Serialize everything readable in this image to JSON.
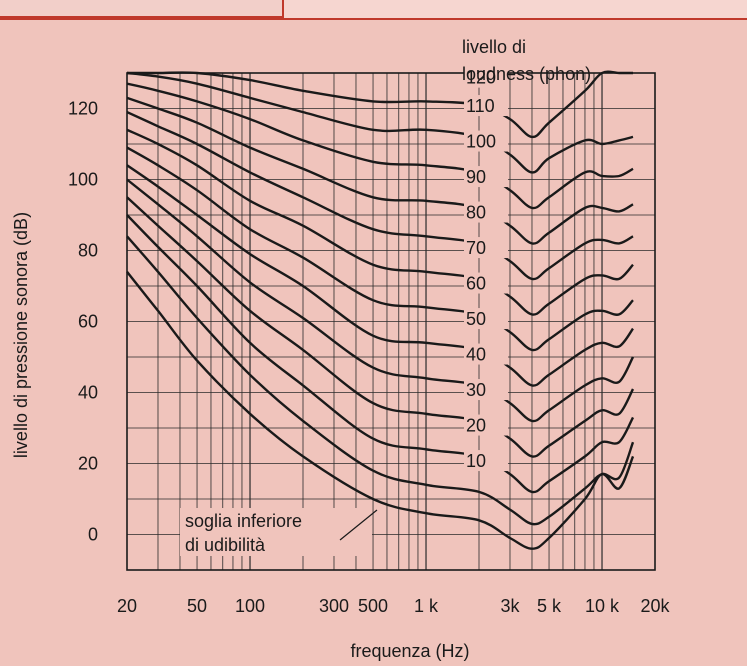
{
  "chart_data": {
    "type": "line",
    "x_scale": "log",
    "xlim": [
      20,
      20000
    ],
    "ylim": [
      -10,
      130
    ],
    "grid": true,
    "xlabel": "frequenza (Hz)",
    "ylabel": "livello di pressione sonora (dB)",
    "legend_title": [
      "livello di",
      "loudness (phon)"
    ],
    "x_ticks": [
      {
        "v": 20,
        "label": "20"
      },
      {
        "v": 50,
        "label": "50"
      },
      {
        "v": 100,
        "label": "100"
      },
      {
        "v": 300,
        "label": "300"
      },
      {
        "v": 500,
        "label": "500"
      },
      {
        "v": 1000,
        "label": "1 k"
      },
      {
        "v": 3000,
        "label": "3k"
      },
      {
        "v": 5000,
        "label": "5 k"
      },
      {
        "v": 10000,
        "label": "10 k"
      },
      {
        "v": 20000,
        "label": "20k"
      }
    ],
    "y_ticks": [
      {
        "v": 0,
        "label": "0"
      },
      {
        "v": 20,
        "label": "20"
      },
      {
        "v": 40,
        "label": "40"
      },
      {
        "v": 60,
        "label": "60"
      },
      {
        "v": 80,
        "label": "80"
      },
      {
        "v": 100,
        "label": "100"
      },
      {
        "v": 120,
        "label": "120"
      }
    ],
    "annotation": {
      "lines": [
        "soglia inferiore",
        "di udibilità"
      ]
    },
    "x": [
      20,
      30,
      50,
      100,
      200,
      500,
      1000,
      2000,
      3000,
      4000,
      5000,
      8000,
      10000,
      12500,
      15000
    ],
    "series": [
      {
        "name": "soglia",
        "label": "",
        "values": [
          74,
          63,
          49,
          34,
          22,
          10,
          6,
          4,
          -1,
          -4,
          -1,
          10,
          17,
          13,
          22
        ]
      },
      {
        "name": "10",
        "label": "10",
        "values": [
          84,
          74,
          61,
          45,
          32,
          18,
          14,
          12,
          7,
          3,
          5,
          13,
          17,
          16,
          26
        ]
      },
      {
        "name": "20",
        "label": "20",
        "values": [
          90,
          81,
          70,
          54,
          42,
          27,
          24,
          22,
          17,
          12,
          15,
          22,
          26,
          26,
          33
        ]
      },
      {
        "name": "30",
        "label": "30",
        "values": [
          95,
          87,
          77,
          63,
          52,
          37,
          34,
          32,
          27,
          22,
          25,
          32,
          35,
          34,
          41
        ]
      },
      {
        "name": "40",
        "label": "40",
        "values": [
          100,
          93,
          84,
          71,
          61,
          47,
          44,
          42,
          37,
          32,
          35,
          42,
          44,
          43,
          50
        ]
      },
      {
        "name": "50",
        "label": "50",
        "values": [
          104,
          98,
          90,
          79,
          70,
          56,
          54,
          52,
          47,
          42,
          45,
          52,
          54,
          53,
          58
        ]
      },
      {
        "name": "60",
        "label": "60",
        "values": [
          109,
          104,
          97,
          86,
          78,
          66,
          64,
          62,
          57,
          52,
          55,
          62,
          63,
          62,
          66
        ]
      },
      {
        "name": "70",
        "label": "70",
        "values": [
          114,
          110,
          104,
          94,
          87,
          76,
          74,
          72,
          67,
          62,
          65,
          72,
          73,
          72,
          76
        ]
      },
      {
        "name": "80",
        "label": "80",
        "values": [
          119,
          115,
          110,
          102,
          95,
          86,
          84,
          82,
          77,
          72,
          75,
          82,
          83,
          82,
          84
        ]
      },
      {
        "name": "90",
        "label": "90",
        "values": [
          123,
          120,
          116,
          109,
          103,
          95,
          94,
          92,
          87,
          82,
          85,
          92,
          92,
          91,
          93
        ]
      },
      {
        "name": "100",
        "label": "100",
        "values": [
          127,
          125,
          122,
          117,
          111,
          105,
          104,
          102,
          97,
          92,
          95,
          102,
          101,
          101,
          103
        ]
      },
      {
        "name": "110",
        "label": "110",
        "values": [
          130,
          129,
          127,
          123,
          119,
          114,
          114,
          112,
          107,
          102,
          106,
          111,
          110,
          111,
          112
        ]
      },
      {
        "name": "120",
        "label": "120",
        "values": [
          130,
          130,
          130,
          128,
          125,
          122,
          122,
          121,
          117,
          112,
          116,
          125,
          130,
          130,
          130
        ]
      }
    ]
  }
}
